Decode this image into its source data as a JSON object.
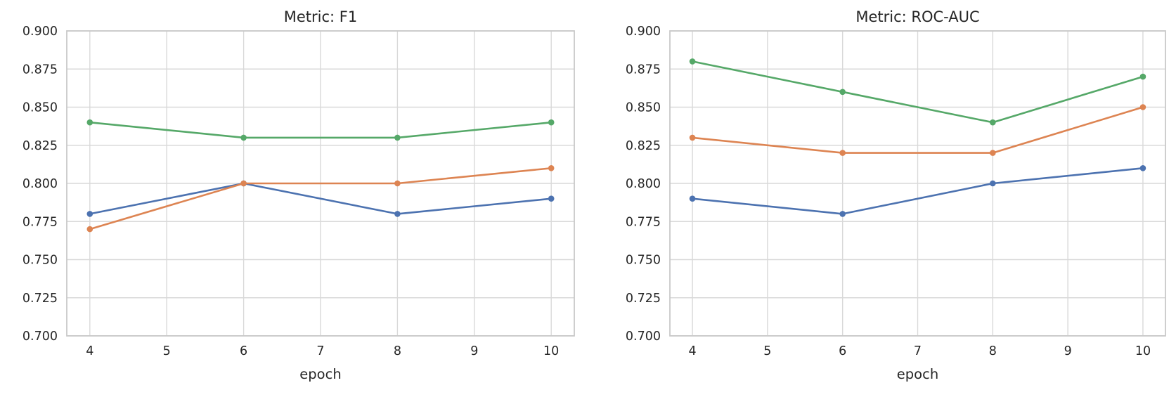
{
  "style": {
    "background": "#ffffff",
    "grid_color": "#d9d9d9",
    "spine_color": "#c9c9c9",
    "text_color": "#262626",
    "series_colors": {
      "blue": "#4C72B0",
      "orange": "#DD8452",
      "green": "#55A868"
    }
  },
  "chart_data": [
    {
      "type": "line",
      "title": "Metric: F1",
      "xlabel": "epoch",
      "ylabel": "",
      "x": [
        4,
        6,
        8,
        10
      ],
      "series": [
        {
          "name": "series-blue",
          "color": "#4C72B0",
          "values": [
            0.78,
            0.8,
            0.78,
            0.79
          ]
        },
        {
          "name": "series-orange",
          "color": "#DD8452",
          "values": [
            0.77,
            0.8,
            0.8,
            0.81
          ]
        },
        {
          "name": "series-green",
          "color": "#55A868",
          "values": [
            0.84,
            0.83,
            0.83,
            0.84
          ]
        }
      ],
      "xlim": [
        3.7,
        10.3
      ],
      "ylim": [
        0.7,
        0.9
      ],
      "xticks": [
        4,
        5,
        6,
        7,
        8,
        9,
        10
      ],
      "xticklabels": [
        "4",
        "5",
        "6",
        "7",
        "8",
        "9",
        "10"
      ],
      "yticks": [
        0.7,
        0.725,
        0.75,
        0.775,
        0.8,
        0.825,
        0.85,
        0.875,
        0.9
      ],
      "yticklabels": [
        "0.700",
        "0.725",
        "0.750",
        "0.775",
        "0.800",
        "0.825",
        "0.850",
        "0.875",
        "0.900"
      ],
      "grid": true,
      "legend": null
    },
    {
      "type": "line",
      "title": "Metric: ROC-AUC",
      "xlabel": "epoch",
      "ylabel": "",
      "x": [
        4,
        6,
        8,
        10
      ],
      "series": [
        {
          "name": "series-blue",
          "color": "#4C72B0",
          "values": [
            0.79,
            0.78,
            0.8,
            0.81
          ]
        },
        {
          "name": "series-orange",
          "color": "#DD8452",
          "values": [
            0.83,
            0.82,
            0.82,
            0.85
          ]
        },
        {
          "name": "series-green",
          "color": "#55A868",
          "values": [
            0.88,
            0.86,
            0.84,
            0.87
          ]
        }
      ],
      "xlim": [
        3.7,
        10.3
      ],
      "ylim": [
        0.7,
        0.9
      ],
      "xticks": [
        4,
        5,
        6,
        7,
        8,
        9,
        10
      ],
      "xticklabels": [
        "4",
        "5",
        "6",
        "7",
        "8",
        "9",
        "10"
      ],
      "yticks": [
        0.7,
        0.725,
        0.75,
        0.775,
        0.8,
        0.825,
        0.85,
        0.875,
        0.9
      ],
      "yticklabels": [
        "0.700",
        "0.725",
        "0.750",
        "0.775",
        "0.800",
        "0.825",
        "0.850",
        "0.875",
        "0.900"
      ],
      "grid": true,
      "legend": null
    }
  ]
}
